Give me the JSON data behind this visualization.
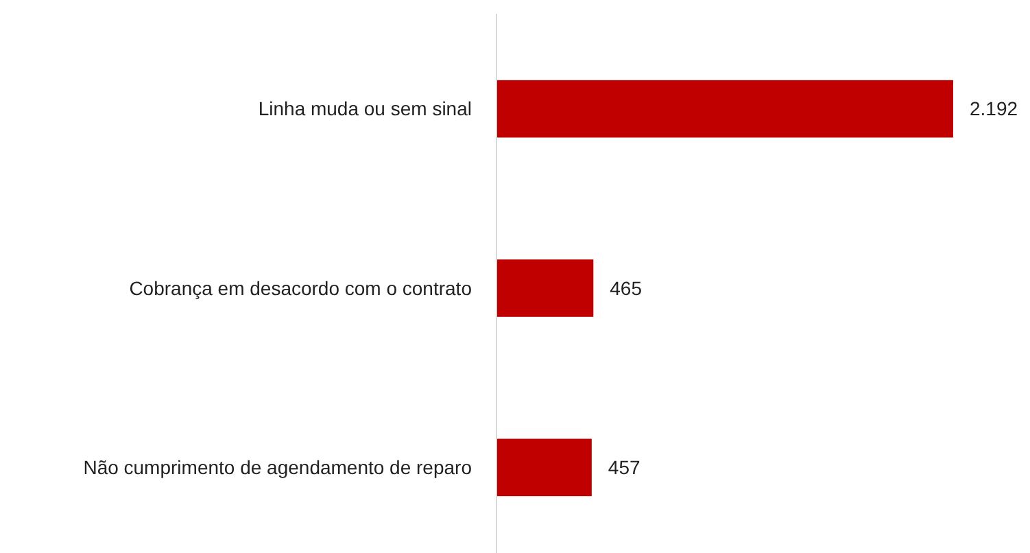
{
  "chart_data": {
    "type": "bar",
    "orientation": "horizontal",
    "categories": [
      "Linha muda ou sem sinal",
      "Cobrança em desacordo com o contrato",
      "Não cumprimento de agendamento de reparo"
    ],
    "values": [
      2192,
      465,
      457
    ],
    "color": "#c00000",
    "value_labels": [
      "2.192",
      "465",
      "457"
    ]
  }
}
